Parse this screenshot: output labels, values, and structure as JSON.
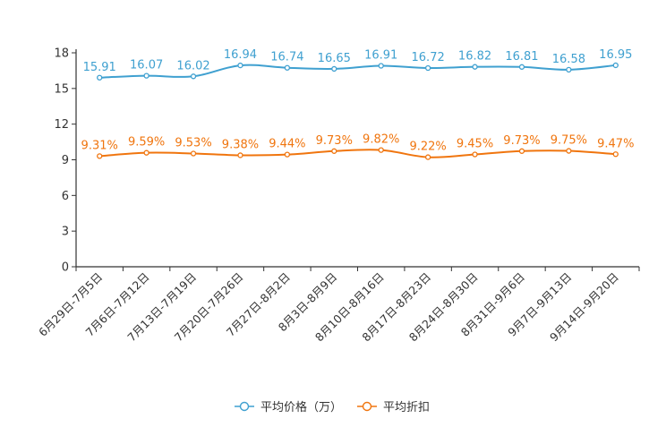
{
  "chart_data": {
    "type": "line",
    "categories": [
      "6月29日-7月5日",
      "7月6日-7月12日",
      "7月13日-7月19日",
      "7月20日-7月26日",
      "7月27日-8月2日",
      "8月3日-8月9日",
      "8月10日-8月16日",
      "8月17日-8月23日",
      "8月24日-8月30日",
      "8月31日-9月6日",
      "9月7日-9月13日",
      "9月14日-9月20日"
    ],
    "series": [
      {
        "name": "平均价格（万）",
        "color": "#3fa0d0",
        "values": [
          15.91,
          16.07,
          16.02,
          16.94,
          16.74,
          16.65,
          16.91,
          16.72,
          16.82,
          16.81,
          16.58,
          16.95
        ],
        "labels": [
          "15.91",
          "16.07",
          "16.02",
          "16.94",
          "16.74",
          "16.65",
          "16.91",
          "16.72",
          "16.82",
          "16.81",
          "16.58",
          "16.95"
        ]
      },
      {
        "name": "平均折扣",
        "color": "#f0750e",
        "values": [
          9.31,
          9.59,
          9.53,
          9.38,
          9.44,
          9.73,
          9.82,
          9.22,
          9.45,
          9.73,
          9.75,
          9.47
        ],
        "labels": [
          "9.31%",
          "9.59%",
          "9.53%",
          "9.38%",
          "9.44%",
          "9.73%",
          "9.82%",
          "9.22%",
          "9.45%",
          "9.73%",
          "9.75%",
          "9.47%"
        ]
      }
    ],
    "yticks": [
      "0",
      "3",
      "6",
      "9",
      "12",
      "15",
      "18"
    ],
    "ylim": [
      0,
      18
    ],
    "legend_position": "bottom"
  }
}
